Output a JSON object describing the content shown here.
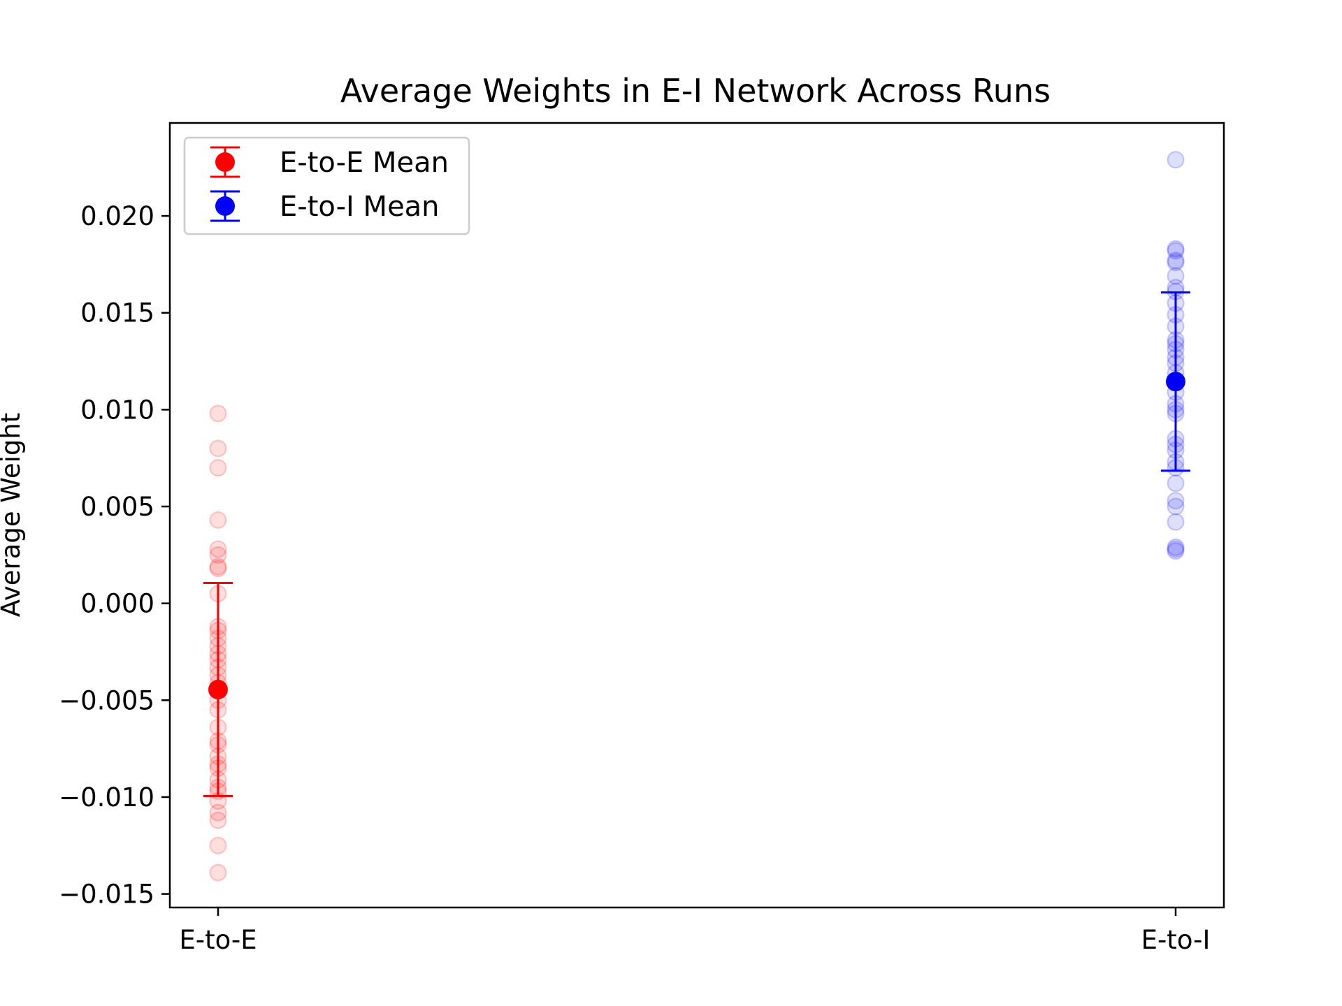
{
  "chart_data": {
    "type": "scatter",
    "title": "Average Weights in E-I Network Across Runs",
    "xlabel": "",
    "ylabel": "Average Weight",
    "categories": [
      "E-to-E",
      "E-to-I"
    ],
    "yticks": [
      -0.015,
      -0.01,
      -0.005,
      0.0,
      0.005,
      0.01,
      0.015,
      0.02
    ],
    "ytick_labels": [
      "−0.015",
      "−0.010",
      "−0.005",
      "0.000",
      "0.005",
      "0.010",
      "0.015",
      "0.020"
    ],
    "ylim": [
      -0.0157,
      0.0248
    ],
    "grid": false,
    "legend_position": "top-left",
    "series": [
      {
        "name": "E-to-E Mean",
        "category": "E-to-E",
        "color": "#ff0000",
        "mean": -0.00445,
        "err_low": -0.00995,
        "err_high": 0.00105,
        "points": [
          0.0098,
          0.008,
          0.007,
          0.0043,
          0.0028,
          0.0025,
          0.0019,
          0.0018,
          0.0005,
          -0.0012,
          -0.0014,
          -0.0018,
          -0.0022,
          -0.0026,
          -0.0029,
          -0.0033,
          -0.0037,
          -0.0041,
          -0.0044,
          -0.005,
          -0.0055,
          -0.0064,
          -0.0071,
          -0.0073,
          -0.0079,
          -0.0083,
          -0.0085,
          -0.0091,
          -0.0095,
          -0.0097,
          -0.0102,
          -0.0108,
          -0.0112,
          -0.0125,
          -0.0139
        ]
      },
      {
        "name": "E-to-I Mean",
        "category": "E-to-I",
        "color": "#0000ff",
        "mean": 0.01145,
        "err_low": 0.00685,
        "err_high": 0.01605,
        "points": [
          0.0229,
          0.0183,
          0.0182,
          0.0177,
          0.0176,
          0.0169,
          0.0163,
          0.0161,
          0.0155,
          0.0149,
          0.0143,
          0.0136,
          0.0134,
          0.0131,
          0.0127,
          0.0124,
          0.0119,
          0.0115,
          0.0109,
          0.0103,
          0.01,
          0.0098,
          0.0085,
          0.0082,
          0.0079,
          0.0073,
          0.007,
          0.0062,
          0.0053,
          0.005,
          0.0042,
          0.0029,
          0.0028,
          0.0027
        ]
      }
    ]
  }
}
